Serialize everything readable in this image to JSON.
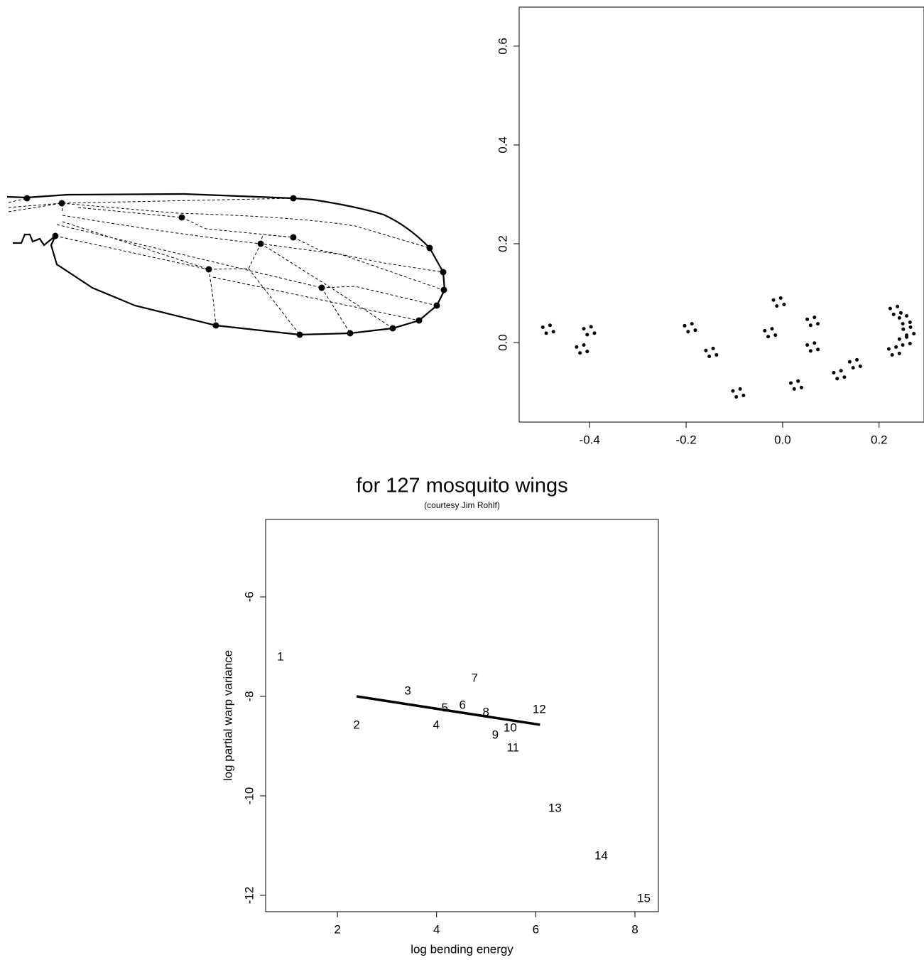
{
  "chart_data": [
    {
      "type": "scatter",
      "x": [
        -0.497,
        -0.475,
        -0.482,
        -0.49,
        -0.412,
        -0.39,
        -0.397,
        -0.405,
        -0.427,
        -0.405,
        -0.412,
        -0.42,
        -0.203,
        -0.181,
        -0.188,
        -0.196,
        -0.159,
        -0.137,
        -0.144,
        -0.152,
        -0.103,
        -0.081,
        -0.088,
        -0.096,
        -0.037,
        -0.015,
        -0.022,
        -0.03,
        -0.019,
        0.003,
        -0.004,
        -0.012,
        0.051,
        0.073,
        0.066,
        0.058,
        0.051,
        0.073,
        0.066,
        0.058,
        0.017,
        0.039,
        0.032,
        0.024,
        0.106,
        0.128,
        0.121,
        0.113,
        0.139,
        0.161,
        0.154,
        0.146,
        0.22,
        0.242,
        0.235,
        0.227,
        0.242,
        0.264,
        0.257,
        0.249,
        0.25,
        0.272,
        0.265,
        0.257,
        0.242,
        0.264,
        0.257,
        0.249,
        0.223,
        0.245,
        0.238,
        0.23
      ],
      "y": [
        0.031,
        0.022,
        0.035,
        0.019,
        0.028,
        0.019,
        0.032,
        0.016,
        -0.009,
        -0.018,
        -0.005,
        -0.021,
        0.034,
        0.025,
        0.038,
        0.022,
        -0.016,
        -0.025,
        -0.012,
        -0.028,
        -0.098,
        -0.107,
        -0.094,
        -0.11,
        0.024,
        0.015,
        0.028,
        0.012,
        0.086,
        0.077,
        0.09,
        0.074,
        0.047,
        0.038,
        0.051,
        0.035,
        -0.005,
        -0.014,
        -0.001,
        -0.017,
        -0.082,
        -0.091,
        -0.078,
        -0.094,
        -0.061,
        -0.07,
        -0.057,
        -0.073,
        -0.039,
        -0.048,
        -0.035,
        -0.051,
        -0.013,
        -0.022,
        -0.009,
        -0.025,
        0.007,
        -0.002,
        0.011,
        -0.005,
        0.027,
        0.018,
        0.031,
        0.015,
        0.05,
        0.041,
        0.054,
        0.038,
        0.069,
        0.06,
        0.073,
        0.057
      ],
      "color": "#000000",
      "xlim": [
        -0.546,
        0.293
      ],
      "ylim": [
        -0.161,
        0.679
      ],
      "xticks": [
        -0.4,
        -0.2,
        {
          "value": 0,
          "label": "0.0"
        },
        0.2
      ],
      "yticks": [
        {
          "value": 0,
          "label": "0.0"
        },
        0.2,
        0.4,
        0.6
      ]
    },
    {
      "type": "scatter",
      "title": "for 127 mosquito wings",
      "subtitle": "(courtesy Jim Rohlf)",
      "x_label": "log bending energy",
      "y_label": "log partial warp variance",
      "labels": [
        "1",
        "2",
        "3",
        "4",
        "5",
        "6",
        "7",
        "8",
        "9",
        "10",
        "11",
        "12",
        "13",
        "14",
        "15"
      ],
      "x": [
        0.853,
        2.387,
        3.419,
        3.993,
        4.165,
        4.523,
        4.767,
        4.996,
        5.183,
        5.484,
        5.541,
        6.072,
        6.387,
        7.319,
        8.179
      ],
      "y": [
        -7.214,
        -8.586,
        -7.9,
        -8.586,
        -8.243,
        -8.186,
        -7.643,
        -8.329,
        -8.786,
        -8.643,
        -9.043,
        -8.271,
        -10.257,
        -11.214,
        -12.071
      ],
      "fit": {
        "x": [
          2.387,
          6.086
        ],
        "y": [
          -8.0,
          -8.571
        ]
      },
      "color": "#000000",
      "xlim": [
        0.552,
        8.473
      ],
      "ylim": [
        -12.329,
        -4.443
      ],
      "xticks": [
        2,
        4,
        6,
        8
      ],
      "yticks": [
        -12,
        -10,
        -8,
        -6
      ]
    }
  ]
}
